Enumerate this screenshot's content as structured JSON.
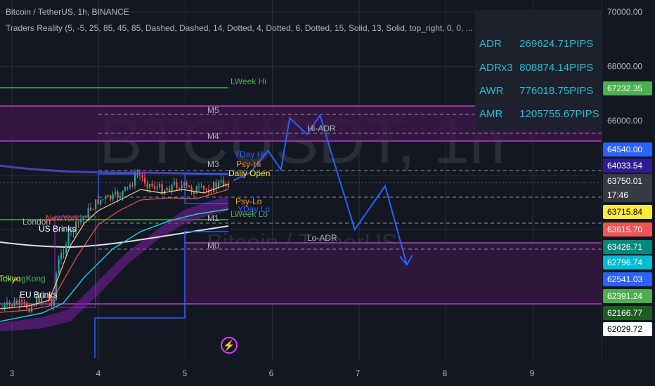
{
  "header": {
    "symbol_line": "Bitcoin / TetherUS, 1h, BINANCE",
    "indicator_line": "Traders Reality (5, -5, 25, 85, 45, 85, Dashed, Dashed, 14, Dotted, 4, Dotted, 6, Dotted, 15, Solid, 13, Solid, top_right, 0, 0, ..."
  },
  "watermark": {
    "big": "BTCUSDT, 1h",
    "small": "Bitcoin / TetherUS"
  },
  "stats": [
    {
      "label": "ADR",
      "value": "269624.71PIPS"
    },
    {
      "label": "ADRx3",
      "value": "808874.14PIPS"
    },
    {
      "label": "AWR",
      "value": "776018.75PIPS"
    },
    {
      "label": "AMR",
      "value": "1205755.67PIPS"
    }
  ],
  "colors": {
    "background": "#131722",
    "grid": "#2a2e39",
    "up": "#26a69a",
    "down": "#ef5350",
    "projection": "#2962ff",
    "zone": "#9c27b0"
  },
  "chart_data": {
    "type": "candlestick",
    "x_ticks": [
      "3",
      "4",
      "5",
      "6",
      "7",
      "8",
      "9"
    ],
    "y_ticks": [
      70000,
      68000,
      66000
    ],
    "ylim": [
      60000,
      70500
    ],
    "price_tags": [
      {
        "value": "67232.35",
        "color": "#4caf50",
        "text_color": "#ffffff"
      },
      {
        "value": "64540.00",
        "color": "#2962ff",
        "text_color": "#ffffff"
      },
      {
        "value": "64033.54",
        "color": "#311b92",
        "text_color": "#ffffff"
      },
      {
        "value": "63750.01",
        "sub": "17:46",
        "color": "#363a45",
        "text_color": "#ffffff"
      },
      {
        "value": "63715.84",
        "color": "#ffeb3b",
        "text_color": "#000000"
      },
      {
        "value": "63615.70",
        "color": "#f05454",
        "text_color": "#ffffff"
      },
      {
        "value": "63426.71",
        "color": "#00897b",
        "text_color": "#ffffff"
      },
      {
        "value": "62796.74",
        "color": "#00bcd4",
        "text_color": "#ffffff"
      },
      {
        "value": "62541.03",
        "color": "#2962ff",
        "text_color": "#ffffff"
      },
      {
        "value": "62391.24",
        "color": "#4caf50",
        "text_color": "#ffffff"
      },
      {
        "value": "62166.77",
        "color": "#1b5e20",
        "text_color": "#ffffff"
      },
      {
        "value": "62029.72",
        "color": "#ffffff",
        "text_color": "#000000"
      }
    ],
    "levels": [
      {
        "label": "LWeek Hi",
        "value": 67400,
        "color": "#4caf50"
      },
      {
        "label": "M5",
        "value": 66400,
        "color": "#b2b5be"
      },
      {
        "label": "M4",
        "value": 65450,
        "color": "#b2b5be"
      },
      {
        "label": "M3",
        "value": 64500,
        "color": "#b2b5be"
      },
      {
        "label": "M1",
        "value": 62640,
        "color": "#b2b5be"
      },
      {
        "label": "M0",
        "value": 61700,
        "color": "#b2b5be"
      },
      {
        "label": "Hi-ADR",
        "value": 65800,
        "color": "#b2b5be"
      },
      {
        "label": "Lo-ADR",
        "value": 62100,
        "color": "#b2b5be"
      },
      {
        "label": "YDay Hi",
        "value": 64700,
        "color": "#2962ff"
      },
      {
        "label": "Psy-Hi",
        "value": 64350,
        "color": "#ff9800"
      },
      {
        "label": "Daily Open",
        "value": 64000,
        "color": "#ffeb3b"
      },
      {
        "label": "Psy-Lo",
        "value": 63250,
        "color": "#ff9800"
      },
      {
        "label": "YDay Lo",
        "value": 63050,
        "color": "#2962ff"
      },
      {
        "label": "LWeek Lo",
        "value": 62800,
        "color": "#4caf50"
      }
    ],
    "session_labels": [
      "London",
      "NewYork",
      "US Brinks",
      "Tokyo",
      "HongKong",
      "EU Brinks"
    ],
    "projection": [
      [
        5.55,
        63800
      ],
      [
        5.75,
        64100
      ],
      [
        5.95,
        64900
      ],
      [
        6.1,
        64200
      ],
      [
        6.2,
        66100
      ],
      [
        6.4,
        65500
      ],
      [
        6.55,
        66200
      ],
      [
        6.7,
        64600
      ],
      [
        6.95,
        62000
      ],
      [
        7.3,
        63600
      ],
      [
        7.55,
        60700
      ]
    ]
  }
}
